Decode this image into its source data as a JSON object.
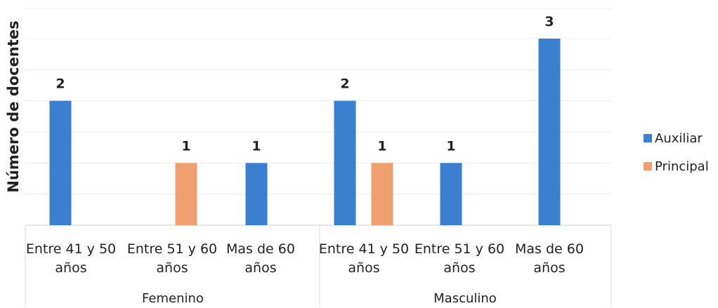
{
  "chart_data": {
    "type": "bar",
    "ylabel": "Número de docentes",
    "xlabel": "",
    "groups": [
      "Femenino",
      "Masculino"
    ],
    "categories": [
      [
        "Entre 41 y 50",
        "años"
      ],
      [
        "Entre 51 y 60",
        "años"
      ],
      [
        "Mas de 60",
        "años"
      ],
      [
        "Entre 41 y 50",
        "años"
      ],
      [
        "Entre 51 y 60",
        "años"
      ],
      [
        "Mas de 60",
        "años"
      ]
    ],
    "series": [
      {
        "name": "Auxiliar",
        "color": "#3b7fd0",
        "values": [
          2,
          null,
          1,
          2,
          1,
          3
        ]
      },
      {
        "name": "Principal",
        "color": "#f0a070",
        "values": [
          null,
          1,
          null,
          1,
          null,
          null
        ]
      }
    ],
    "ylim": [
      0,
      3
    ],
    "grid": true,
    "legend": "right"
  }
}
